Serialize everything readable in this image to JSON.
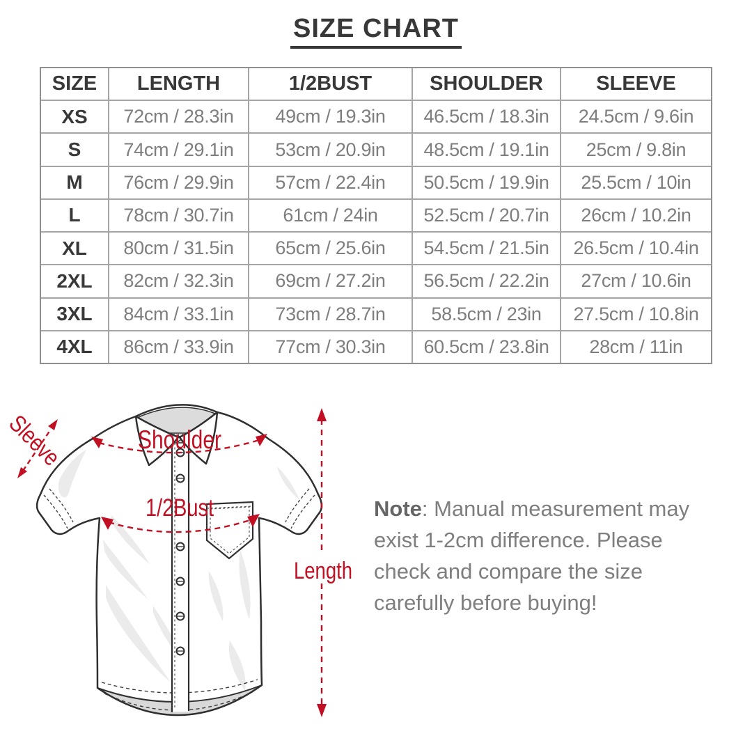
{
  "title": "SIZE CHART",
  "table": {
    "headers": [
      "SIZE",
      "LENGTH",
      "1/2BUST",
      "SHOULDER",
      "SLEEVE"
    ],
    "rows": [
      [
        "XS",
        "72cm / 28.3in",
        "49cm / 19.3in",
        "46.5cm / 18.3in",
        "24.5cm / 9.6in"
      ],
      [
        "S",
        "74cm / 29.1in",
        "53cm / 20.9in",
        "48.5cm / 19.1in",
        "25cm / 9.8in"
      ],
      [
        "M",
        "76cm / 29.9in",
        "57cm / 22.4in",
        "50.5cm / 19.9in",
        "25.5cm / 10in"
      ],
      [
        "L",
        "78cm / 30.7in",
        "61cm / 24in",
        "52.5cm / 20.7in",
        "26cm / 10.2in"
      ],
      [
        "XL",
        "80cm / 31.5in",
        "65cm / 25.6in",
        "54.5cm / 21.5in",
        "26.5cm / 10.4in"
      ],
      [
        "2XL",
        "82cm / 32.3in",
        "69cm / 27.2in",
        "56.5cm / 22.2in",
        "27cm / 10.6in"
      ],
      [
        "3XL",
        "84cm / 33.1in",
        "73cm / 28.7in",
        "58.5cm / 23in",
        "27.5cm / 10.8in"
      ],
      [
        "4XL",
        "86cm / 33.9in",
        "77cm / 30.3in",
        "60.5cm / 23.8in",
        "28cm / 11in"
      ]
    ]
  },
  "diagram": {
    "shoulder_label": "Shoulder",
    "bust_label": "1/2Bust",
    "sleeve_label": "Sleeve",
    "length_label": "Length"
  },
  "note": {
    "label": "Note",
    "line1_rest": ": Manual measurement may",
    "line2": "exist 1-2cm difference. Please",
    "line3": "check and compare the size",
    "line4": "carefully before buying!"
  },
  "colors": {
    "annotation_red": "#c11023",
    "heading_text": "#383838",
    "value_text": "#7e7e7e",
    "table_border": "#a5a5a5",
    "shirt_outline": "#2f2f2f"
  }
}
